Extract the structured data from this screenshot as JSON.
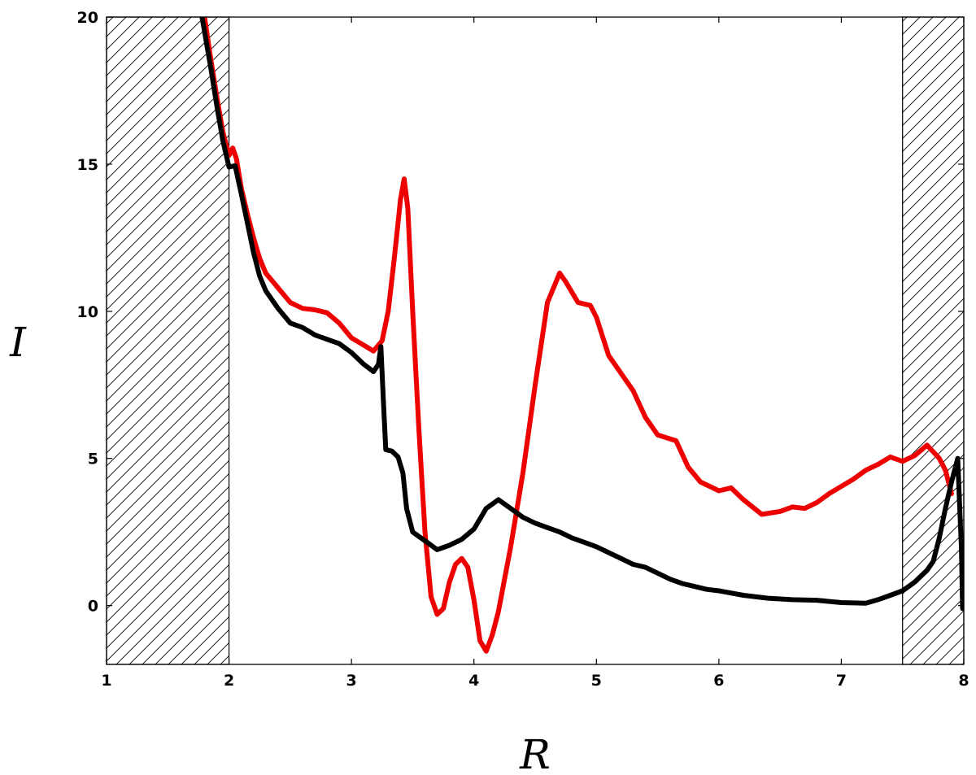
{
  "chart_data": {
    "type": "line",
    "title": "",
    "xlabel": "R",
    "ylabel": "I",
    "xlim": [
      1,
      8
    ],
    "ylim": [
      -2,
      20
    ],
    "xticks": [
      1,
      2,
      3,
      4,
      5,
      6,
      7,
      8
    ],
    "yticks": [
      0,
      5,
      10,
      15,
      20
    ],
    "grid": false,
    "shaded_regions": [
      {
        "x0": 1,
        "x1": 2,
        "pattern": "hatch"
      },
      {
        "x0": 7.5,
        "x1": 8,
        "pattern": "hatch"
      }
    ],
    "series": [
      {
        "color": "#ee0000",
        "points": [
          [
            1.8,
            20
          ],
          [
            1.85,
            18.6
          ],
          [
            1.9,
            17.3
          ],
          [
            1.95,
            16.1
          ],
          [
            2.0,
            15.3
          ],
          [
            2.03,
            15.55
          ],
          [
            2.06,
            15.2
          ],
          [
            2.1,
            14.2
          ],
          [
            2.15,
            13.3
          ],
          [
            2.2,
            12.5
          ],
          [
            2.25,
            11.8
          ],
          [
            2.3,
            11.3
          ],
          [
            2.4,
            10.8
          ],
          [
            2.5,
            10.3
          ],
          [
            2.6,
            10.1
          ],
          [
            2.7,
            10.05
          ],
          [
            2.8,
            9.95
          ],
          [
            2.9,
            9.6
          ],
          [
            3.0,
            9.1
          ],
          [
            3.1,
            8.85
          ],
          [
            3.18,
            8.65
          ],
          [
            3.25,
            9.0
          ],
          [
            3.3,
            10.0
          ],
          [
            3.35,
            11.8
          ],
          [
            3.4,
            13.8
          ],
          [
            3.43,
            14.5
          ],
          [
            3.46,
            13.5
          ],
          [
            3.5,
            10.0
          ],
          [
            3.55,
            6.0
          ],
          [
            3.6,
            2.5
          ],
          [
            3.65,
            0.3
          ],
          [
            3.7,
            -0.3
          ],
          [
            3.75,
            -0.1
          ],
          [
            3.8,
            0.8
          ],
          [
            3.85,
            1.4
          ],
          [
            3.9,
            1.6
          ],
          [
            3.95,
            1.3
          ],
          [
            4.0,
            0.2
          ],
          [
            4.05,
            -1.2
          ],
          [
            4.1,
            -1.55
          ],
          [
            4.15,
            -1.0
          ],
          [
            4.2,
            -0.2
          ],
          [
            4.3,
            2.0
          ],
          [
            4.4,
            4.5
          ],
          [
            4.5,
            7.5
          ],
          [
            4.6,
            10.3
          ],
          [
            4.7,
            11.3
          ],
          [
            4.75,
            11.0
          ],
          [
            4.85,
            10.3
          ],
          [
            4.95,
            10.2
          ],
          [
            5.0,
            9.8
          ],
          [
            5.1,
            8.5
          ],
          [
            5.2,
            7.9
          ],
          [
            5.3,
            7.3
          ],
          [
            5.4,
            6.4
          ],
          [
            5.5,
            5.8
          ],
          [
            5.65,
            5.6
          ],
          [
            5.75,
            4.7
          ],
          [
            5.85,
            4.2
          ],
          [
            6.0,
            3.9
          ],
          [
            6.1,
            4.0
          ],
          [
            6.2,
            3.6
          ],
          [
            6.35,
            3.1
          ],
          [
            6.5,
            3.2
          ],
          [
            6.6,
            3.35
          ],
          [
            6.7,
            3.3
          ],
          [
            6.8,
            3.5
          ],
          [
            6.9,
            3.8
          ],
          [
            7.0,
            4.05
          ],
          [
            7.1,
            4.3
          ],
          [
            7.2,
            4.6
          ],
          [
            7.3,
            4.8
          ],
          [
            7.4,
            5.05
          ],
          [
            7.5,
            4.9
          ],
          [
            7.6,
            5.1
          ],
          [
            7.7,
            5.45
          ],
          [
            7.8,
            5.0
          ],
          [
            7.85,
            4.6
          ],
          [
            7.9,
            3.8
          ]
        ]
      },
      {
        "color": "#000000",
        "points": [
          [
            1.78,
            20
          ],
          [
            1.85,
            18.3
          ],
          [
            1.9,
            17.0
          ],
          [
            1.95,
            15.8
          ],
          [
            2.0,
            14.9
          ],
          [
            2.05,
            14.95
          ],
          [
            2.1,
            14.0
          ],
          [
            2.15,
            13.0
          ],
          [
            2.2,
            12.0
          ],
          [
            2.25,
            11.2
          ],
          [
            2.3,
            10.7
          ],
          [
            2.4,
            10.1
          ],
          [
            2.5,
            9.6
          ],
          [
            2.6,
            9.45
          ],
          [
            2.7,
            9.2
          ],
          [
            2.8,
            9.05
          ],
          [
            2.9,
            8.9
          ],
          [
            3.0,
            8.6
          ],
          [
            3.1,
            8.2
          ],
          [
            3.18,
            7.95
          ],
          [
            3.22,
            8.2
          ],
          [
            3.24,
            8.8
          ],
          [
            3.26,
            7.0
          ],
          [
            3.28,
            5.3
          ],
          [
            3.33,
            5.25
          ],
          [
            3.38,
            5.05
          ],
          [
            3.42,
            4.5
          ],
          [
            3.45,
            3.3
          ],
          [
            3.5,
            2.5
          ],
          [
            3.6,
            2.2
          ],
          [
            3.7,
            1.9
          ],
          [
            3.8,
            2.05
          ],
          [
            3.9,
            2.25
          ],
          [
            4.0,
            2.6
          ],
          [
            4.1,
            3.3
          ],
          [
            4.2,
            3.6
          ],
          [
            4.3,
            3.3
          ],
          [
            4.4,
            3.0
          ],
          [
            4.5,
            2.8
          ],
          [
            4.6,
            2.65
          ],
          [
            4.7,
            2.5
          ],
          [
            4.8,
            2.3
          ],
          [
            4.9,
            2.15
          ],
          [
            5.0,
            2.0
          ],
          [
            5.1,
            1.8
          ],
          [
            5.2,
            1.6
          ],
          [
            5.3,
            1.4
          ],
          [
            5.4,
            1.3
          ],
          [
            5.5,
            1.1
          ],
          [
            5.6,
            0.9
          ],
          [
            5.7,
            0.75
          ],
          [
            5.8,
            0.65
          ],
          [
            5.9,
            0.55
          ],
          [
            6.0,
            0.5
          ],
          [
            6.2,
            0.35
          ],
          [
            6.4,
            0.25
          ],
          [
            6.6,
            0.2
          ],
          [
            6.8,
            0.18
          ],
          [
            7.0,
            0.1
          ],
          [
            7.2,
            0.08
          ],
          [
            7.3,
            0.2
          ],
          [
            7.4,
            0.35
          ],
          [
            7.5,
            0.5
          ],
          [
            7.6,
            0.8
          ],
          [
            7.7,
            1.2
          ],
          [
            7.75,
            1.5
          ],
          [
            7.8,
            2.3
          ],
          [
            7.85,
            3.3
          ],
          [
            7.9,
            4.2
          ],
          [
            7.95,
            5.0
          ],
          [
            7.98,
            2.0
          ],
          [
            7.99,
            -0.1
          ]
        ]
      }
    ]
  }
}
